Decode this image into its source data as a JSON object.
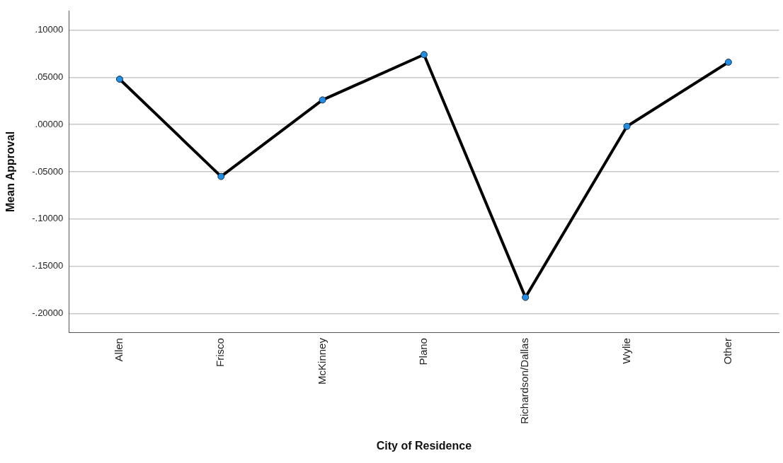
{
  "chart_data": {
    "type": "line",
    "xlabel": "City of Residence",
    "ylabel": "Mean Approval",
    "categories": [
      "Allen",
      "Frisco",
      "McKinney",
      "Plano",
      "Richardson/Dallas",
      "Wylie",
      "Other"
    ],
    "series": [
      {
        "color": "#000000",
        "values": [
          0.048,
          -0.055,
          0.026,
          0.074,
          -0.183,
          -0.002,
          0.066
        ]
      }
    ],
    "ylim": [
      -0.22,
      0.12
    ],
    "yticks": [
      {
        "value": -0.2,
        "label": "-.20000"
      },
      {
        "value": -0.15,
        "label": "-.15000"
      },
      {
        "value": -0.1,
        "label": "-.10000"
      },
      {
        "value": -0.05,
        "label": "-.05000"
      },
      {
        "value": 0,
        "label": ".00000"
      },
      {
        "value": 0.05,
        "label": ".05000"
      },
      {
        "value": 0.1,
        "label": ".10000"
      }
    ],
    "grid": "y",
    "legend": false,
    "marker": "circle",
    "line_style": "solid"
  }
}
